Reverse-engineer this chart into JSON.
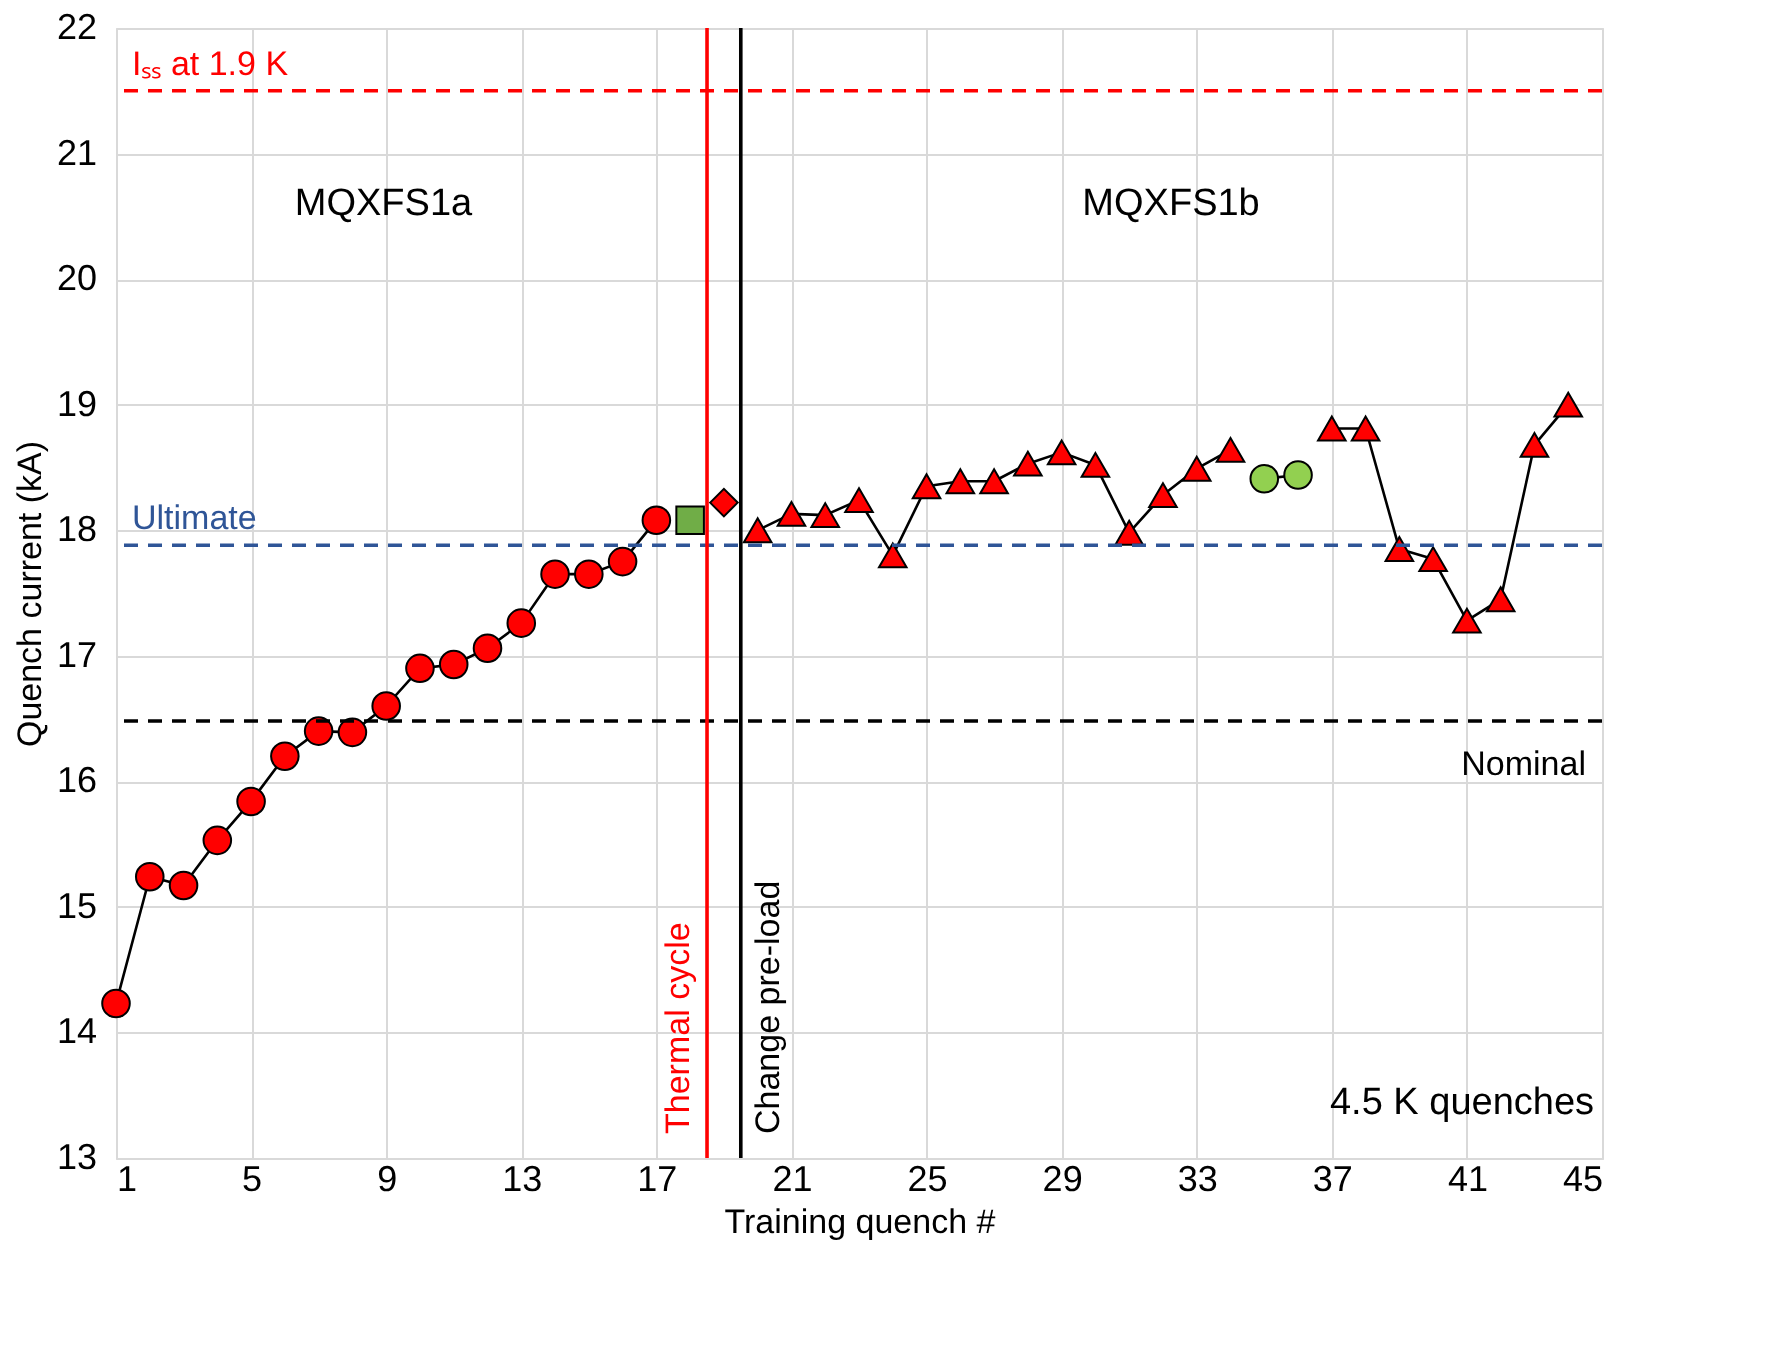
{
  "chart_data": {
    "type": "line",
    "xlabel": "Training quench #",
    "ylabel": "Quench current (kA)",
    "xlim": [
      1,
      45
    ],
    "xticks": [
      1,
      5,
      9,
      13,
      17,
      21,
      25,
      29,
      33,
      37,
      41,
      45
    ],
    "ylim": [
      13,
      22
    ],
    "yticks": [
      13,
      14,
      15,
      16,
      17,
      18,
      19,
      20,
      21,
      22
    ],
    "grid": true,
    "series": [
      {
        "marker": "circle",
        "color": "#ff0000",
        "x": [
          1,
          2,
          3,
          4,
          5,
          6,
          7,
          8,
          9,
          10,
          11,
          12,
          13,
          14,
          15,
          16,
          17
        ],
        "values": [
          14.23,
          15.24,
          15.17,
          15.53,
          15.84,
          16.2,
          16.4,
          16.39,
          16.6,
          16.9,
          16.93,
          17.06,
          17.26,
          17.65,
          17.65,
          17.75,
          18.08
        ]
      },
      {
        "type": "scatter",
        "marker": "square",
        "color": "#70ad47",
        "x": [
          18
        ],
        "values": [
          18.08
        ]
      },
      {
        "type": "scatter",
        "marker": "diamond",
        "color": "#ff0000",
        "x": [
          19
        ],
        "values": [
          18.22
        ]
      },
      {
        "marker": "triangle",
        "color": "#ff0000",
        "x": [
          20,
          21,
          22,
          23,
          24,
          25,
          26,
          27,
          28,
          29,
          30,
          31,
          32,
          33,
          34,
          35,
          36,
          37,
          38,
          39,
          40,
          41,
          42,
          43,
          44
        ],
        "values": [
          18.0,
          18.13,
          18.12,
          18.24,
          17.8,
          18.35,
          18.39,
          18.39,
          18.53,
          18.62,
          18.52,
          17.98,
          18.28,
          18.49,
          18.64,
          null,
          null,
          18.81,
          18.81,
          17.85,
          17.77,
          17.28,
          17.45,
          18.68,
          19.0
        ]
      },
      {
        "marker": "circle",
        "color": "#92d050",
        "x": [
          35,
          36
        ],
        "values": [
          18.41,
          18.44
        ]
      }
    ],
    "ref_lines": [
      {
        "axis": "y",
        "value": 21.5,
        "label": "Iₛₛ at 1.9 K",
        "color": "#ff0000",
        "line_style": "dashed"
      },
      {
        "axis": "y",
        "value": 17.88,
        "label": "Ultimate",
        "color": "#2f5597",
        "line_style": "dashed"
      },
      {
        "axis": "y",
        "value": 16.48,
        "label": "Nominal",
        "color": "#000000",
        "line_style": "dashed"
      },
      {
        "axis": "x",
        "value": 18.5,
        "label": "Thermal cycle",
        "color": "#ff0000",
        "line_style": "solid"
      },
      {
        "axis": "x",
        "value": 19.5,
        "label": "Change pre-load",
        "color": "#000000",
        "line_style": "solid"
      }
    ],
    "annotations": [
      "MQXFS1a",
      "MQXFS1b",
      "4.5 K quenches"
    ]
  }
}
